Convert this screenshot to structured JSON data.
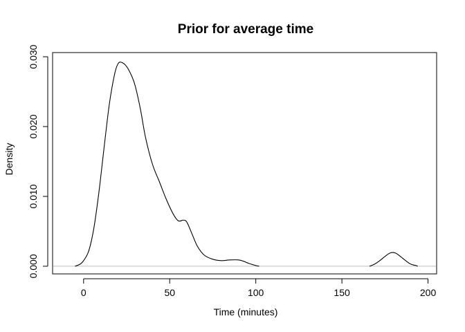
{
  "chart_data": {
    "type": "line",
    "title": "Prior for average time",
    "xlabel": "Time (minutes)",
    "ylabel": "Density",
    "xlim": [
      -18,
      205
    ],
    "ylim": [
      -0.0011,
      0.0306
    ],
    "x_ticks": [
      0,
      50,
      100,
      150,
      200
    ],
    "y_ticks": [
      0.0,
      0.01,
      0.02,
      0.03
    ],
    "x_tick_labels": [
      "0",
      "50",
      "100",
      "150",
      "200"
    ],
    "y_tick_labels": [
      "0.000",
      "0.010",
      "0.020",
      "0.030"
    ],
    "baseline": 0,
    "baseline_color": "#bebebe",
    "line_color": "#000000",
    "grid": false,
    "legend": "none",
    "series": [
      {
        "segments": [
          {
            "x": [
              -5,
              -2,
              0,
              3,
              6,
              9,
              12,
              15,
              18,
              20,
              22,
              25,
              28,
              30,
              33,
              36,
              40,
              44,
              48,
              52,
              55,
              58,
              60,
              63,
              66,
              70,
              75,
              80,
              85,
              90,
              93,
              96,
              100,
              102
            ],
            "y": [
              0,
              0.0003,
              0.0008,
              0.0022,
              0.0055,
              0.0108,
              0.0172,
              0.0233,
              0.0275,
              0.029,
              0.0292,
              0.0286,
              0.0272,
              0.0258,
              0.0225,
              0.0184,
              0.0146,
              0.0121,
              0.0096,
              0.0075,
              0.0065,
              0.0066,
              0.0063,
              0.0046,
              0.0029,
              0.0016,
              0.001,
              0.0008,
              0.0009,
              0.0009,
              0.0007,
              0.0004,
              0.0001,
              0
            ]
          },
          {
            "x": [
              166,
              169,
              172,
              175,
              178,
              181,
              184,
              187,
              190,
              193,
              194
            ],
            "y": [
              0,
              0.0003,
              0.0008,
              0.0014,
              0.0019,
              0.0019,
              0.0014,
              0.0008,
              0.0003,
              0.0001,
              0
            ]
          }
        ]
      }
    ]
  }
}
